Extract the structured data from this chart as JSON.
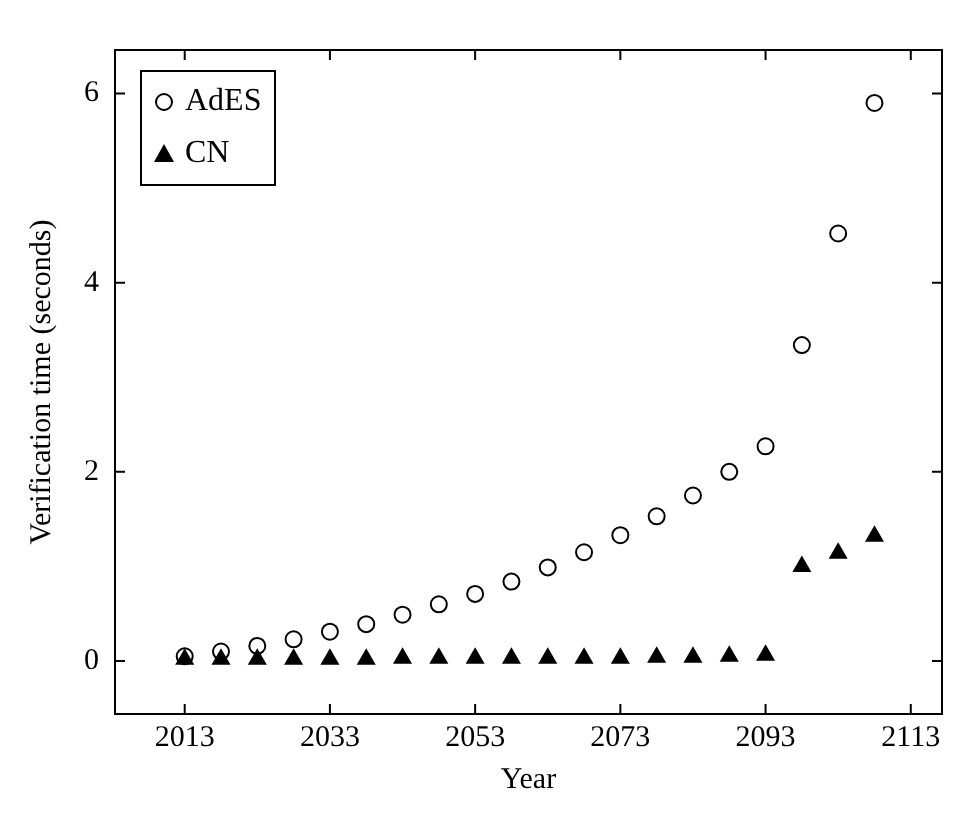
{
  "chart_data": {
    "type": "scatter",
    "xlabel": "Year",
    "ylabel": "Verification time (seconds)",
    "x": [
      2013,
      2018,
      2023,
      2028,
      2033,
      2038,
      2043,
      2048,
      2053,
      2058,
      2063,
      2068,
      2073,
      2078,
      2083,
      2088,
      2093,
      2098,
      2103,
      2108
    ],
    "series": [
      {
        "name": "AdES",
        "color": "#000000",
        "marker": "circle",
        "values": [
          0.05,
          0.1,
          0.16,
          0.23,
          0.31,
          0.39,
          0.49,
          0.6,
          0.71,
          0.84,
          0.99,
          1.15,
          1.33,
          1.53,
          1.75,
          2.0,
          2.27,
          3.34,
          4.52,
          5.9
        ]
      },
      {
        "name": "CN",
        "color": "#000000",
        "marker": "triangle",
        "values": [
          0.02,
          0.02,
          0.02,
          0.02,
          0.02,
          0.02,
          0.03,
          0.03,
          0.03,
          0.03,
          0.03,
          0.03,
          0.03,
          0.04,
          0.04,
          0.05,
          0.06,
          1.0,
          1.14,
          1.32
        ]
      }
    ],
    "xlim": [
      2003.4,
      2117.3
    ],
    "ylim": [
      -0.56,
      6.46
    ],
    "xticks": [
      2013,
      2033,
      2053,
      2073,
      2093,
      2113
    ],
    "yticks": [
      0,
      2,
      4,
      6
    ],
    "grid": false,
    "legend": "top left"
  }
}
